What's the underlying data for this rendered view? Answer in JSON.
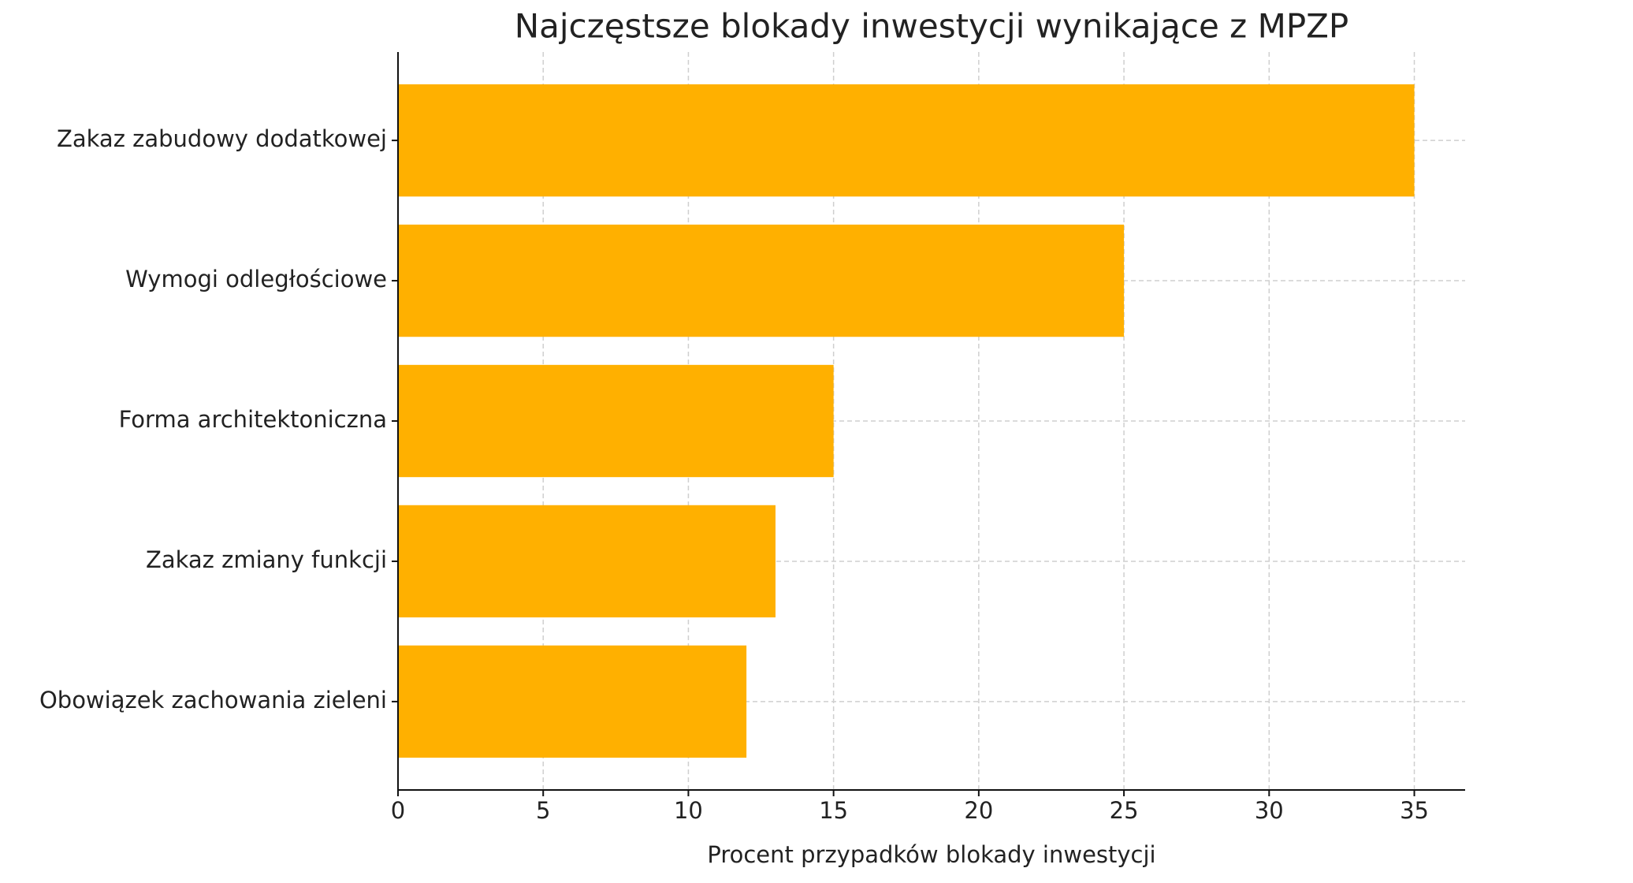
{
  "chart_data": {
    "type": "barh",
    "title": "Najczęstsze blokady inwestycji wynikające z MPZP",
    "xlabel": "Procent przypadków blokady inwestycji",
    "categories": [
      "Zakaz zabudowy dodatkowej",
      "Wymogi odległościowe",
      "Forma architektoniczna",
      "Zakaz zmiany funkcji",
      "Obowiązek zachowania zieleni"
    ],
    "values": [
      35,
      25,
      15,
      13,
      12
    ],
    "color": "#ffb000",
    "xlim": [
      0,
      36.75
    ],
    "xticks": [
      0,
      5,
      10,
      15,
      20,
      25,
      30,
      35
    ],
    "grid": true
  }
}
